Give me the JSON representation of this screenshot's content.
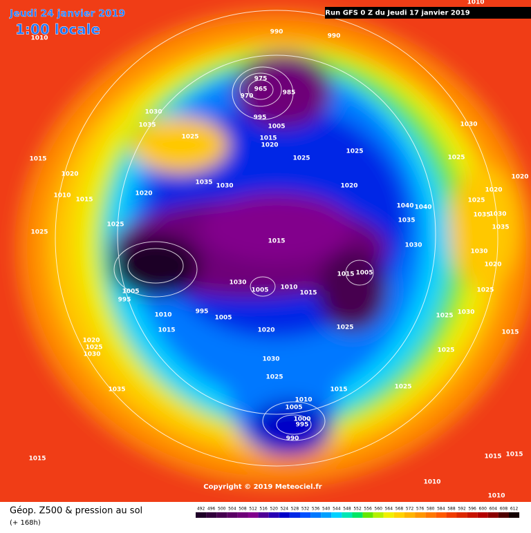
{
  "header": {
    "date": "Jeudi 24 janvier 2019",
    "time": "1:00 locale",
    "run": "Run GFS 0 Z du Jeudi 17 janvier 2019"
  },
  "copyright": "Copyright © 2019 Meteociel.fr",
  "footer": {
    "title": "Géop. Z500 & pression au sol",
    "lead": "(+ 168h)"
  },
  "isobar_labels": [
    990,
    990,
    975,
    965,
    970,
    985,
    995,
    1005,
    1015,
    1020,
    1030,
    1035,
    1025,
    1015,
    1020,
    1010,
    1015,
    1020,
    1035,
    1030,
    1025,
    1025,
    1020,
    1030,
    1025,
    1020,
    1020,
    1025,
    1040,
    1040,
    1035,
    1035,
    1030,
    1035,
    1030,
    1030,
    1020,
    1025,
    1025,
    1015,
    1015,
    1005,
    1005,
    995,
    1010,
    1015,
    995,
    1005,
    1030,
    1005,
    1010,
    1015,
    1025,
    1030,
    1025,
    1015,
    1025,
    1020,
    1020,
    1025,
    1030,
    1025,
    1030,
    1025,
    1025,
    1015,
    1035,
    1010,
    1005,
    1000,
    995,
    990,
    1015,
    1015,
    1015,
    1010,
    1010,
    1010,
    1010
  ],
  "colorbar": {
    "ticks": [
      492,
      496,
      500,
      504,
      508,
      512,
      516,
      520,
      524,
      528,
      532,
      536,
      540,
      544,
      548,
      552,
      556,
      560,
      564,
      568,
      572,
      576,
      580,
      584,
      588,
      592,
      596,
      600,
      604,
      608,
      612
    ],
    "colors": [
      "#1e0028",
      "#32003c",
      "#460050",
      "#5a0064",
      "#6e0078",
      "#82008c",
      "#500096",
      "#2800b4",
      "#0000c8",
      "#0028e6",
      "#0050ff",
      "#0078ff",
      "#00a0ff",
      "#00d2ff",
      "#00e6b4",
      "#00e664",
      "#64e600",
      "#b4f000",
      "#f0f000",
      "#ffd200",
      "#ffb400",
      "#ff9600",
      "#ff7800",
      "#ff5a00",
      "#f03c00",
      "#dc2800",
      "#c81400",
      "#b40000",
      "#8c0000",
      "#500000",
      "#140000"
    ]
  }
}
